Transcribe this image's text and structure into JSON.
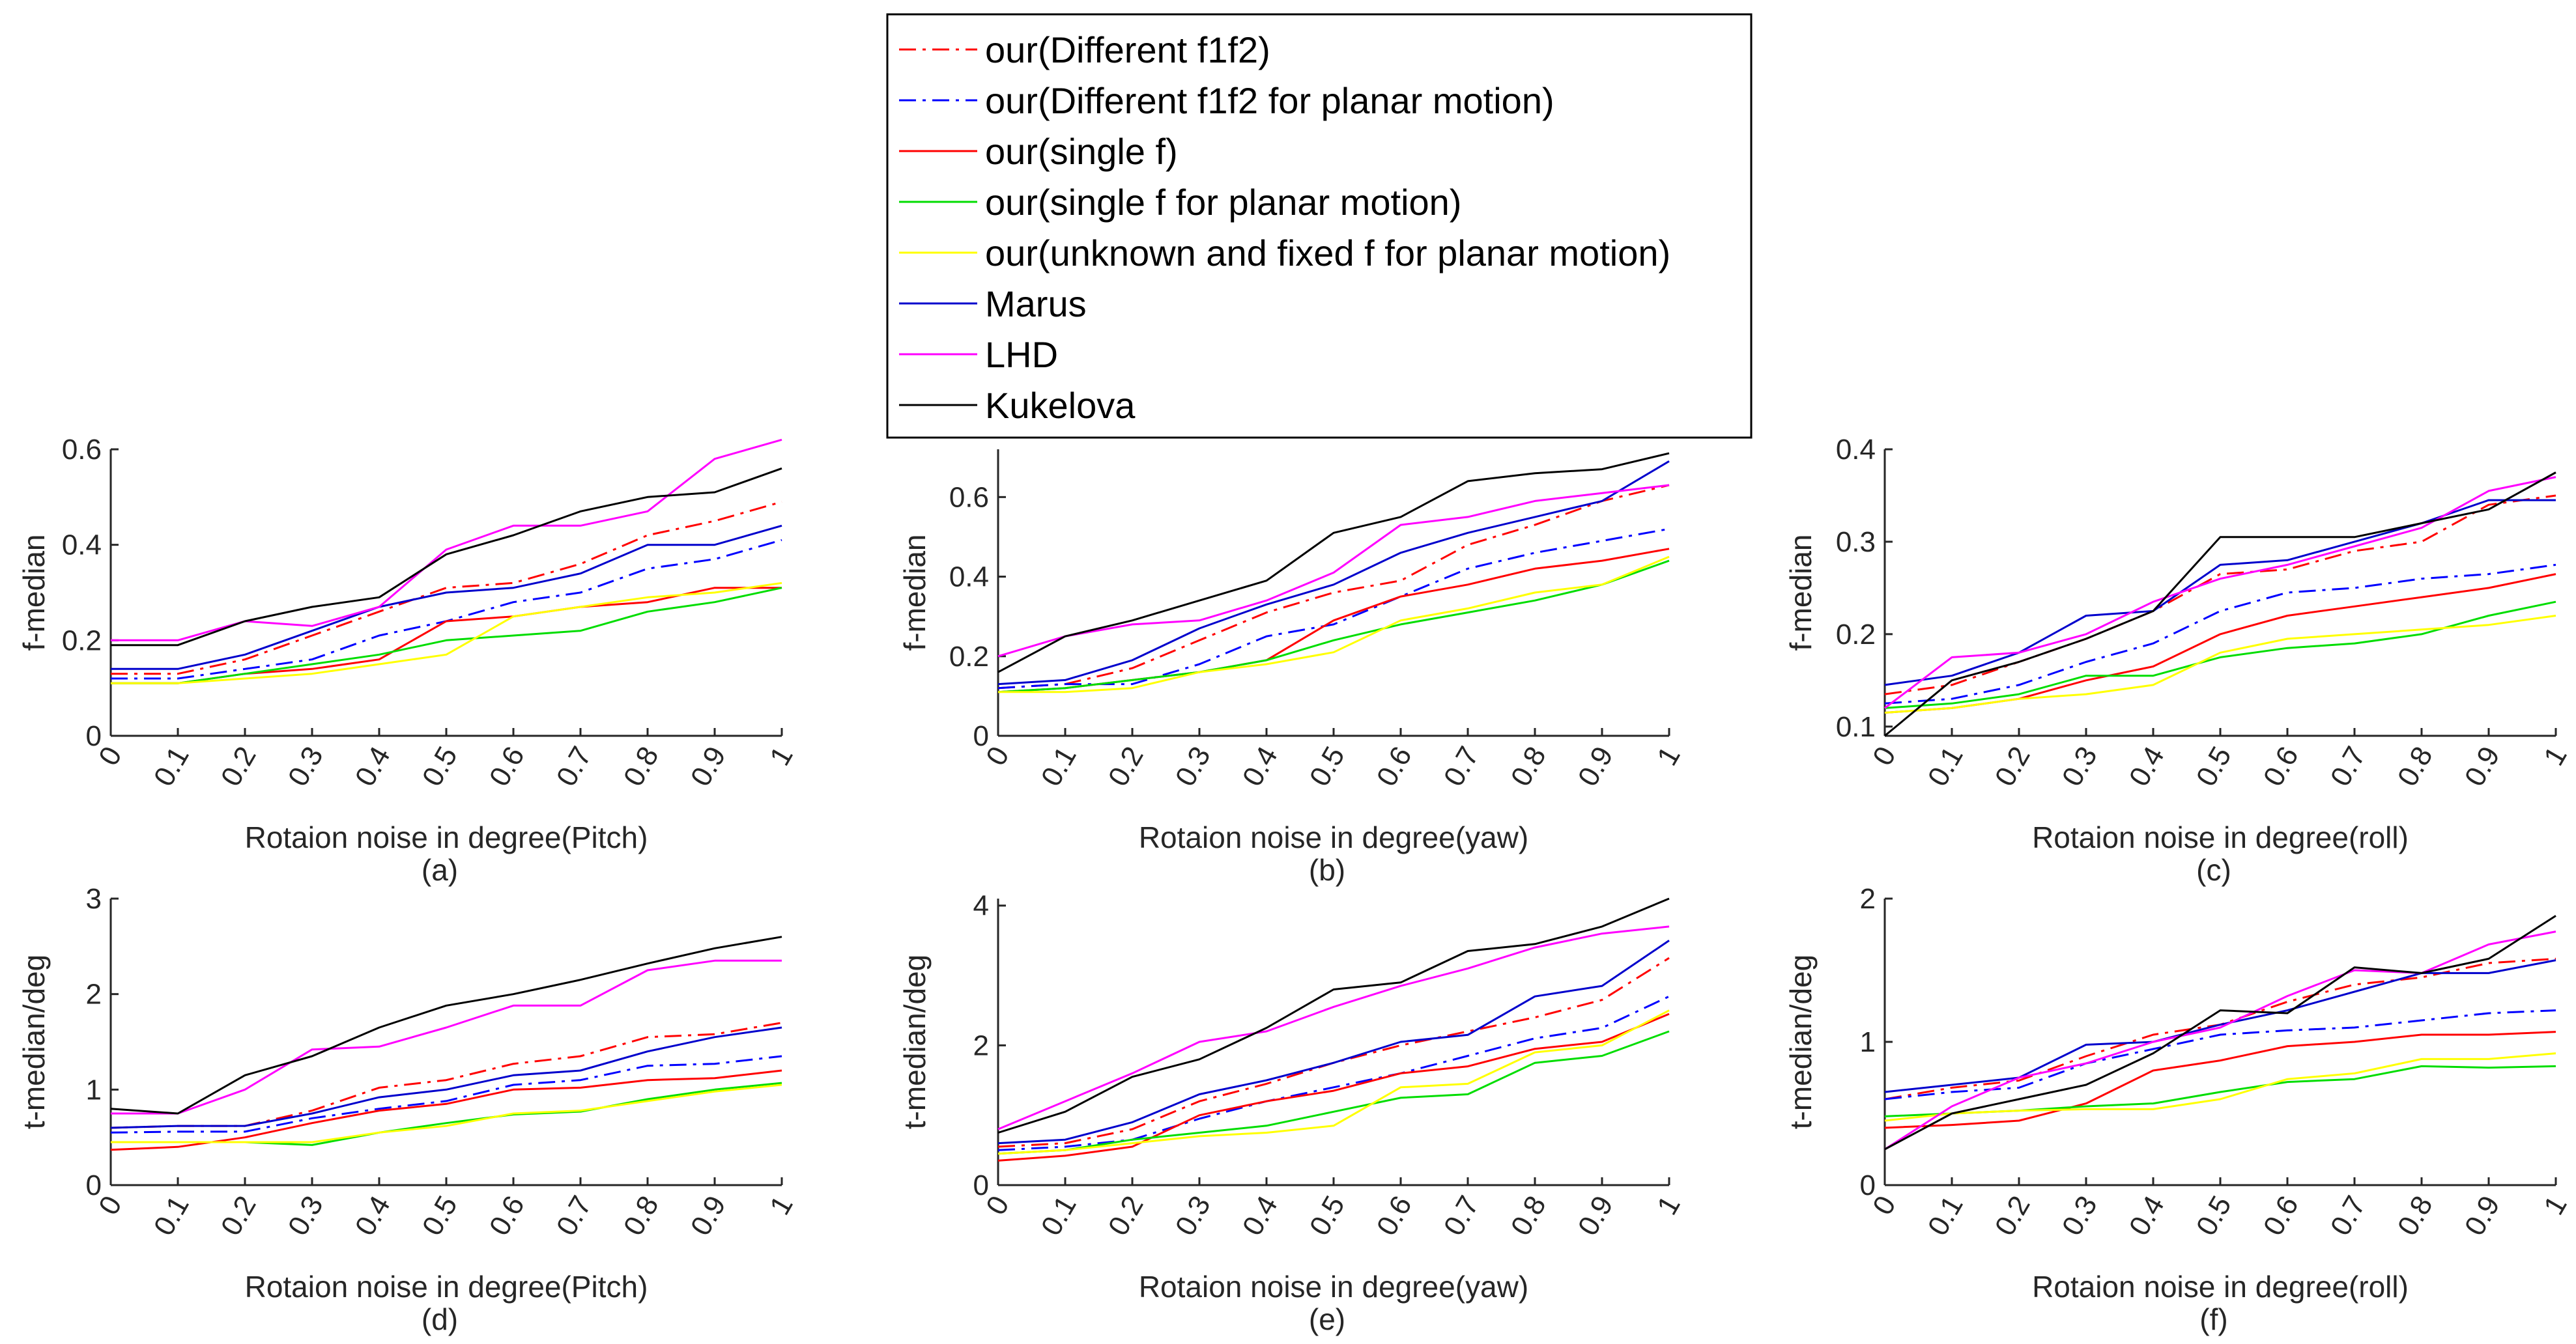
{
  "figure": {
    "legend": [
      {
        "label": "our(Different f1f2)",
        "color": "#ff0000",
        "dash": "dashdot"
      },
      {
        "label": "our(Different f1f2 for planar motion)",
        "color": "#0000ff",
        "dash": "dashdot"
      },
      {
        "label": "our(single f)",
        "color": "#ff0000",
        "dash": "solid"
      },
      {
        "label": "our(single f for planar motion)",
        "color": "#00dd00",
        "dash": "solid"
      },
      {
        "label": "our(unknown and fixed f for planar motion)",
        "color": "#ffff00",
        "dash": "solid"
      },
      {
        "label": "Marus",
        "color": "#0000cc",
        "dash": "solid"
      },
      {
        "label": "LHD",
        "color": "#ff00ff",
        "dash": "solid"
      },
      {
        "label": "Kukelova",
        "color": "#000000",
        "dash": "solid"
      }
    ]
  },
  "chart_data": [
    {
      "type": "line",
      "caption": "(a)",
      "xlabel": "Rotaion noise in degree(Pitch)",
      "ylabel": "f-median",
      "x": [
        0,
        0.1,
        0.2,
        0.3,
        0.4,
        0.5,
        0.6,
        0.7,
        0.8,
        0.9,
        1
      ],
      "xticks": [
        "0",
        "0.1",
        "0.2",
        "0.3",
        "0.4",
        "0.5",
        "0.6",
        "0.7",
        "0.8",
        "0.9",
        "1"
      ],
      "ylim": [
        0,
        0.6
      ],
      "yticks": [
        0,
        0.2,
        0.4,
        0.6
      ],
      "ytick_labels": [
        "0",
        "0.2",
        "0.4",
        "0.6"
      ],
      "series": [
        {
          "name": "our(Different f1f2)",
          "values": [
            0.13,
            0.13,
            0.16,
            0.21,
            0.26,
            0.31,
            0.32,
            0.36,
            0.42,
            0.45,
            0.49
          ]
        },
        {
          "name": "our(Different f1f2 for planar motion)",
          "values": [
            0.12,
            0.12,
            0.14,
            0.16,
            0.21,
            0.24,
            0.28,
            0.3,
            0.35,
            0.37,
            0.41
          ]
        },
        {
          "name": "our(single f)",
          "values": [
            0.11,
            0.11,
            0.13,
            0.14,
            0.16,
            0.24,
            0.25,
            0.27,
            0.28,
            0.31,
            0.31
          ]
        },
        {
          "name": "our(single f for planar motion)",
          "values": [
            0.11,
            0.11,
            0.13,
            0.15,
            0.17,
            0.2,
            0.21,
            0.22,
            0.26,
            0.28,
            0.31
          ]
        },
        {
          "name": "our(unknown and fixed f for planar motion)",
          "values": [
            0.11,
            0.11,
            0.12,
            0.13,
            0.15,
            0.17,
            0.25,
            0.27,
            0.29,
            0.3,
            0.32
          ]
        },
        {
          "name": "Marus",
          "values": [
            0.14,
            0.14,
            0.17,
            0.22,
            0.27,
            0.3,
            0.31,
            0.34,
            0.4,
            0.4,
            0.44
          ]
        },
        {
          "name": "LHD",
          "values": [
            0.2,
            0.2,
            0.24,
            0.23,
            0.27,
            0.39,
            0.44,
            0.44,
            0.47,
            0.58,
            0.62
          ]
        },
        {
          "name": "Kukelova",
          "values": [
            0.19,
            0.19,
            0.24,
            0.27,
            0.29,
            0.38,
            0.42,
            0.47,
            0.5,
            0.51,
            0.56
          ]
        }
      ]
    },
    {
      "type": "line",
      "caption": "(b)",
      "xlabel": "Rotaion noise in degree(yaw)",
      "ylabel": "f-median",
      "x": [
        0,
        0.1,
        0.2,
        0.3,
        0.4,
        0.5,
        0.6,
        0.7,
        0.8,
        0.9,
        1
      ],
      "xticks": [
        "0",
        "0.1",
        "0.2",
        "0.3",
        "0.4",
        "0.5",
        "0.6",
        "0.7",
        "0.8",
        "0.9",
        "1"
      ],
      "ylim": [
        0,
        0.72
      ],
      "yticks": [
        0,
        0.2,
        0.4,
        0.6
      ],
      "ytick_labels": [
        "0",
        "0.2",
        "0.4",
        "0.6"
      ],
      "series": [
        {
          "name": "our(Different f1f2)",
          "values": [
            0.12,
            0.13,
            0.17,
            0.24,
            0.31,
            0.36,
            0.39,
            0.48,
            0.53,
            0.59,
            0.63
          ]
        },
        {
          "name": "our(Different f1f2 for planar motion)",
          "values": [
            0.12,
            0.13,
            0.13,
            0.18,
            0.25,
            0.28,
            0.35,
            0.42,
            0.46,
            0.49,
            0.52
          ]
        },
        {
          "name": "our(single f)",
          "values": [
            0.11,
            0.12,
            0.14,
            0.16,
            0.19,
            0.29,
            0.35,
            0.38,
            0.42,
            0.44,
            0.47
          ]
        },
        {
          "name": "our(single f for planar motion)",
          "values": [
            0.11,
            0.12,
            0.14,
            0.16,
            0.19,
            0.24,
            0.28,
            0.31,
            0.34,
            0.38,
            0.44
          ]
        },
        {
          "name": "our(unknown and fixed f for planar motion)",
          "values": [
            0.11,
            0.11,
            0.12,
            0.16,
            0.18,
            0.21,
            0.29,
            0.32,
            0.36,
            0.38,
            0.45
          ]
        },
        {
          "name": "Marus",
          "values": [
            0.13,
            0.14,
            0.19,
            0.27,
            0.33,
            0.38,
            0.46,
            0.51,
            0.55,
            0.59,
            0.69
          ]
        },
        {
          "name": "LHD",
          "values": [
            0.2,
            0.25,
            0.28,
            0.29,
            0.34,
            0.41,
            0.53,
            0.55,
            0.59,
            0.61,
            0.63
          ]
        },
        {
          "name": "Kukelova",
          "values": [
            0.16,
            0.25,
            0.29,
            0.34,
            0.39,
            0.51,
            0.55,
            0.64,
            0.66,
            0.67,
            0.71
          ]
        }
      ]
    },
    {
      "type": "line",
      "caption": "(c)",
      "xlabel": "Rotaion noise in degree(roll)",
      "ylabel": "f-median",
      "x": [
        0,
        0.1,
        0.2,
        0.3,
        0.4,
        0.5,
        0.6,
        0.7,
        0.8,
        0.9,
        1
      ],
      "xticks": [
        "0",
        "0.1",
        "0.2",
        "0.3",
        "0.4",
        "0.5",
        "0.6",
        "0.7",
        "0.8",
        "0.9",
        "1"
      ],
      "ylim": [
        0.09,
        0.4
      ],
      "yticks": [
        0.1,
        0.2,
        0.3,
        0.4
      ],
      "ytick_labels": [
        "0.1",
        "0.2",
        "0.3",
        "0.4"
      ],
      "series": [
        {
          "name": "our(Different f1f2)",
          "values": [
            0.135,
            0.145,
            0.17,
            0.195,
            0.225,
            0.265,
            0.27,
            0.29,
            0.3,
            0.34,
            0.35
          ]
        },
        {
          "name": "our(Different f1f2 for planar motion)",
          "values": [
            0.125,
            0.13,
            0.145,
            0.17,
            0.19,
            0.225,
            0.245,
            0.25,
            0.26,
            0.265,
            0.275
          ]
        },
        {
          "name": "our(single f)",
          "values": [
            0.115,
            0.12,
            0.13,
            0.15,
            0.165,
            0.2,
            0.22,
            0.23,
            0.24,
            0.25,
            0.265
          ]
        },
        {
          "name": "our(single f for planar motion)",
          "values": [
            0.12,
            0.125,
            0.135,
            0.155,
            0.155,
            0.175,
            0.185,
            0.19,
            0.2,
            0.22,
            0.235
          ]
        },
        {
          "name": "our(unknown and fixed f for planar motion)",
          "values": [
            0.115,
            0.12,
            0.13,
            0.135,
            0.145,
            0.18,
            0.195,
            0.2,
            0.205,
            0.21,
            0.22
          ]
        },
        {
          "name": "Marus",
          "values": [
            0.145,
            0.155,
            0.18,
            0.22,
            0.225,
            0.275,
            0.28,
            0.3,
            0.32,
            0.345,
            0.345
          ]
        },
        {
          "name": "LHD",
          "values": [
            0.12,
            0.175,
            0.18,
            0.2,
            0.235,
            0.26,
            0.275,
            0.295,
            0.315,
            0.355,
            0.37
          ]
        },
        {
          "name": "Kukelova",
          "values": [
            0.09,
            0.15,
            0.17,
            0.195,
            0.225,
            0.305,
            0.305,
            0.305,
            0.32,
            0.335,
            0.375
          ]
        }
      ]
    },
    {
      "type": "line",
      "caption": "(d)",
      "xlabel": "Rotaion noise in degree(Pitch)",
      "ylabel": "t-median/deg",
      "x": [
        0,
        0.1,
        0.2,
        0.3,
        0.4,
        0.5,
        0.6,
        0.7,
        0.8,
        0.9,
        1
      ],
      "xticks": [
        "0",
        "0.1",
        "0.2",
        "0.3",
        "0.4",
        "0.5",
        "0.6",
        "0.7",
        "0.8",
        "0.9",
        "1"
      ],
      "ylim": [
        0,
        3
      ],
      "yticks": [
        0,
        1,
        2,
        3
      ],
      "ytick_labels": [
        "0",
        "1",
        "2",
        "3"
      ],
      "series": [
        {
          "name": "our(Different f1f2)",
          "values": [
            0.6,
            0.62,
            0.62,
            0.78,
            1.02,
            1.1,
            1.27,
            1.35,
            1.55,
            1.58,
            1.7
          ]
        },
        {
          "name": "our(Different f1f2 for planar motion)",
          "values": [
            0.55,
            0.56,
            0.56,
            0.7,
            0.8,
            0.88,
            1.05,
            1.1,
            1.25,
            1.27,
            1.35
          ]
        },
        {
          "name": "our(single f)",
          "values": [
            0.37,
            0.4,
            0.5,
            0.65,
            0.78,
            0.85,
            1.0,
            1.02,
            1.1,
            1.12,
            1.2
          ]
        },
        {
          "name": "our(single f for planar motion)",
          "values": [
            0.45,
            0.45,
            0.45,
            0.42,
            0.55,
            0.65,
            0.74,
            0.77,
            0.9,
            1.0,
            1.07
          ]
        },
        {
          "name": "our(unknown and fixed f for planar motion)",
          "values": [
            0.45,
            0.45,
            0.45,
            0.45,
            0.55,
            0.62,
            0.75,
            0.78,
            0.88,
            0.98,
            1.05
          ]
        },
        {
          "name": "Marus",
          "values": [
            0.6,
            0.62,
            0.62,
            0.75,
            0.92,
            1.0,
            1.15,
            1.2,
            1.4,
            1.55,
            1.65
          ]
        },
        {
          "name": "LHD",
          "values": [
            0.75,
            0.75,
            1.0,
            1.42,
            1.45,
            1.65,
            1.88,
            1.88,
            2.25,
            2.35,
            2.35
          ]
        },
        {
          "name": "Kukelova",
          "values": [
            0.8,
            0.75,
            1.15,
            1.35,
            1.65,
            1.88,
            2.0,
            2.15,
            2.32,
            2.48,
            2.6
          ]
        }
      ]
    },
    {
      "type": "line",
      "caption": "(e)",
      "xlabel": "Rotaion noise in degree(yaw)",
      "ylabel": "t-median/deg",
      "x": [
        0,
        0.1,
        0.2,
        0.3,
        0.4,
        0.5,
        0.6,
        0.7,
        0.8,
        0.9,
        1
      ],
      "xticks": [
        "0",
        "0.1",
        "0.2",
        "0.3",
        "0.4",
        "0.5",
        "0.6",
        "0.7",
        "0.8",
        "0.9",
        "1"
      ],
      "ylim": [
        0,
        4.1
      ],
      "yticks": [
        0,
        2,
        4
      ],
      "ytick_labels": [
        "0",
        "2",
        "4"
      ],
      "series": [
        {
          "name": "our(Different f1f2)",
          "values": [
            0.55,
            0.6,
            0.8,
            1.2,
            1.45,
            1.75,
            2.0,
            2.2,
            2.4,
            2.65,
            3.25
          ]
        },
        {
          "name": "our(Different f1f2 for planar motion)",
          "values": [
            0.5,
            0.55,
            0.65,
            0.95,
            1.2,
            1.4,
            1.6,
            1.85,
            2.1,
            2.25,
            2.7
          ]
        },
        {
          "name": "our(single f)",
          "values": [
            0.35,
            0.42,
            0.55,
            1.0,
            1.2,
            1.35,
            1.6,
            1.7,
            1.95,
            2.05,
            2.45
          ]
        },
        {
          "name": "our(single f for planar motion)",
          "values": [
            0.45,
            0.5,
            0.65,
            0.75,
            0.85,
            1.05,
            1.25,
            1.3,
            1.75,
            1.85,
            2.2
          ]
        },
        {
          "name": "our(unknown and fixed f for planar motion)",
          "values": [
            0.45,
            0.5,
            0.6,
            0.7,
            0.75,
            0.85,
            1.4,
            1.45,
            1.9,
            2.0,
            2.5
          ]
        },
        {
          "name": "Marus",
          "values": [
            0.6,
            0.65,
            0.9,
            1.3,
            1.5,
            1.75,
            2.05,
            2.15,
            2.7,
            2.85,
            3.5
          ]
        },
        {
          "name": "LHD",
          "values": [
            0.8,
            1.2,
            1.6,
            2.05,
            2.2,
            2.55,
            2.85,
            3.1,
            3.4,
            3.6,
            3.7
          ]
        },
        {
          "name": "Kukelova",
          "values": [
            0.75,
            1.05,
            1.55,
            1.8,
            2.25,
            2.8,
            2.9,
            3.35,
            3.45,
            3.7,
            4.1
          ]
        }
      ]
    },
    {
      "type": "line",
      "caption": "(f)",
      "xlabel": "Rotaion noise in degree(roll)",
      "ylabel": "t-median/deg",
      "x": [
        0,
        0.1,
        0.2,
        0.3,
        0.4,
        0.5,
        0.6,
        0.7,
        0.8,
        0.9,
        1
      ],
      "xticks": [
        "0",
        "0.1",
        "0.2",
        "0.3",
        "0.4",
        "0.5",
        "0.6",
        "0.7",
        "0.8",
        "0.9",
        "1"
      ],
      "ylim": [
        0,
        2
      ],
      "yticks": [
        0,
        1,
        2
      ],
      "ytick_labels": [
        "0",
        "1",
        "2"
      ],
      "series": [
        {
          "name": "our(Different f1f2)",
          "values": [
            0.6,
            0.68,
            0.73,
            0.9,
            1.05,
            1.12,
            1.28,
            1.4,
            1.45,
            1.55,
            1.58
          ]
        },
        {
          "name": "our(Different f1f2 for planar motion)",
          "values": [
            0.6,
            0.65,
            0.68,
            0.85,
            0.95,
            1.05,
            1.08,
            1.1,
            1.15,
            1.2,
            1.22
          ]
        },
        {
          "name": "our(single f)",
          "values": [
            0.4,
            0.42,
            0.45,
            0.57,
            0.8,
            0.87,
            0.97,
            1.0,
            1.05,
            1.05,
            1.07
          ]
        },
        {
          "name": "our(single f for planar motion)",
          "values": [
            0.48,
            0.5,
            0.52,
            0.55,
            0.57,
            0.65,
            0.72,
            0.74,
            0.83,
            0.82,
            0.83
          ]
        },
        {
          "name": "our(unknown and fixed f for planar motion)",
          "values": [
            0.45,
            0.5,
            0.52,
            0.53,
            0.53,
            0.6,
            0.74,
            0.78,
            0.88,
            0.88,
            0.92
          ]
        },
        {
          "name": "Marus",
          "values": [
            0.65,
            0.7,
            0.75,
            0.98,
            1.0,
            1.12,
            1.22,
            1.35,
            1.48,
            1.48,
            1.57
          ]
        },
        {
          "name": "LHD",
          "values": [
            0.25,
            0.55,
            0.75,
            0.85,
            1.0,
            1.1,
            1.32,
            1.5,
            1.48,
            1.68,
            1.77
          ]
        },
        {
          "name": "Kukelova",
          "values": [
            0.25,
            0.5,
            0.6,
            0.7,
            0.92,
            1.22,
            1.2,
            1.52,
            1.48,
            1.58,
            1.88
          ]
        }
      ]
    }
  ]
}
